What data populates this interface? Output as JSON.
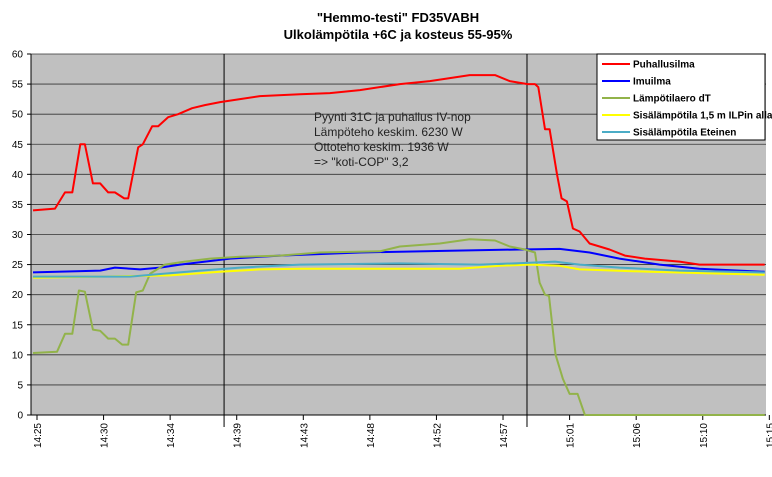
{
  "chart_data": {
    "type": "line",
    "title": "\"Hemmo-testi\" FD35VABH",
    "subtitle": "Ulkolämpötila +6C ja kosteus 55-95%",
    "xlabel": "",
    "ylabel": "",
    "x_unit": "sample index (tick every 10 samples)",
    "xlim": [
      -0.9,
      109.5
    ],
    "ylim": [
      0,
      60
    ],
    "yticks": [
      0,
      5,
      10,
      15,
      20,
      25,
      30,
      35,
      40,
      45,
      50,
      55,
      60
    ],
    "xticks": [
      {
        "x": 0,
        "label": "14:25"
      },
      {
        "x": 10,
        "label": "14:30"
      },
      {
        "x": 20,
        "label": "14:34"
      },
      {
        "x": 30,
        "label": "14:39"
      },
      {
        "x": 40,
        "label": "14:43"
      },
      {
        "x": 50,
        "label": "14:48"
      },
      {
        "x": 60,
        "label": "14:52"
      },
      {
        "x": 70,
        "label": "14:57"
      },
      {
        "x": 80,
        "label": "15:01"
      },
      {
        "x": 90,
        "label": "15:06"
      },
      {
        "x": 100,
        "label": "15:10"
      },
      {
        "x": 110,
        "label": "15:15"
      }
    ],
    "grid": "horizontal",
    "background": "#c0c0c0",
    "legend_position": "top-right",
    "vertical_markers": [
      28.1,
      73.6
    ],
    "annotation": [
      "Pyynti 31C ja puhallus  IV-nop",
      "Lämpöteho keskim. 6230 W",
      "Ottoteho keskim. 1936 W",
      "=> \"koti-COP\" 3,2"
    ],
    "series": [
      {
        "name": "Puhallusilma",
        "color": "#ff0000",
        "points": [
          [
            -0.6,
            34
          ],
          [
            2.7,
            34.3
          ],
          [
            4.2,
            37
          ],
          [
            5.3,
            37
          ],
          [
            6.5,
            45
          ],
          [
            7.2,
            45
          ],
          [
            8.4,
            38.5
          ],
          [
            9.5,
            38.5
          ],
          [
            10.7,
            37
          ],
          [
            11.7,
            37
          ],
          [
            13.1,
            36
          ],
          [
            13.7,
            36
          ],
          [
            15.2,
            44.5
          ],
          [
            15.9,
            45
          ],
          [
            17.3,
            48
          ],
          [
            18.2,
            48
          ],
          [
            19.7,
            49.5
          ],
          [
            21.2,
            50
          ],
          [
            23.3,
            51
          ],
          [
            25.2,
            51.5
          ],
          [
            27.5,
            52
          ],
          [
            30.5,
            52.5
          ],
          [
            33.5,
            53
          ],
          [
            39.5,
            53.3
          ],
          [
            44,
            53.5
          ],
          [
            48.5,
            54
          ],
          [
            54.5,
            55
          ],
          [
            59,
            55.5
          ],
          [
            62,
            56
          ],
          [
            65,
            56.5
          ],
          [
            68.8,
            56.5
          ],
          [
            71,
            55.5
          ],
          [
            73.7,
            55
          ],
          [
            74.8,
            55
          ],
          [
            75.3,
            54.5
          ],
          [
            76.3,
            47.5
          ],
          [
            77,
            47.5
          ],
          [
            78.1,
            40
          ],
          [
            78.8,
            36
          ],
          [
            79.6,
            35.5
          ],
          [
            80.5,
            31
          ],
          [
            81.5,
            30.5
          ],
          [
            83,
            28.5
          ],
          [
            84.5,
            28
          ],
          [
            86,
            27.5
          ],
          [
            88.3,
            26.5
          ],
          [
            91.3,
            26
          ],
          [
            96.5,
            25.5
          ],
          [
            99.5,
            25
          ],
          [
            109.3,
            25
          ]
        ]
      },
      {
        "name": "Imuilma",
        "color": "#0000ff",
        "points": [
          [
            -0.6,
            23.7
          ],
          [
            9.5,
            24
          ],
          [
            11.7,
            24.5
          ],
          [
            15.5,
            24.2
          ],
          [
            18.5,
            24.5
          ],
          [
            21.5,
            25
          ],
          [
            29,
            26
          ],
          [
            36.5,
            26.5
          ],
          [
            48.5,
            27
          ],
          [
            62,
            27.3
          ],
          [
            72.5,
            27.5
          ],
          [
            78.5,
            27.6
          ],
          [
            83,
            27
          ],
          [
            87.5,
            26
          ],
          [
            93.5,
            25
          ],
          [
            99.5,
            24.3
          ],
          [
            109.3,
            23.8
          ]
        ]
      },
      {
        "name": "Lämpötilaero dT",
        "color": "#92b34a",
        "points": [
          [
            -0.6,
            10.3
          ],
          [
            3,
            10.5
          ],
          [
            4.2,
            13.5
          ],
          [
            5.3,
            13.5
          ],
          [
            6.3,
            20.7
          ],
          [
            7.2,
            20.5
          ],
          [
            8.4,
            14.2
          ],
          [
            9.5,
            14
          ],
          [
            10.7,
            12.7
          ],
          [
            11.7,
            12.7
          ],
          [
            12.8,
            11.7
          ],
          [
            13.7,
            11.7
          ],
          [
            14.9,
            20.4
          ],
          [
            15.9,
            20.7
          ],
          [
            17,
            23.5
          ],
          [
            19.2,
            25
          ],
          [
            22.2,
            25.5
          ],
          [
            26,
            26
          ],
          [
            30.5,
            26.3
          ],
          [
            36.5,
            26.5
          ],
          [
            42.5,
            27
          ],
          [
            51.5,
            27.2
          ],
          [
            54.5,
            28
          ],
          [
            60.5,
            28.5
          ],
          [
            65,
            29.2
          ],
          [
            68.8,
            29
          ],
          [
            71,
            28
          ],
          [
            73.3,
            27.5
          ],
          [
            74.8,
            27
          ],
          [
            75.5,
            22
          ],
          [
            76.3,
            20
          ],
          [
            76.9,
            19.8
          ],
          [
            77.9,
            10
          ],
          [
            79,
            6
          ],
          [
            80,
            3.5
          ],
          [
            81.2,
            3.5
          ],
          [
            82.3,
            0
          ],
          [
            109.3,
            0
          ]
        ]
      },
      {
        "name": "Sisälämpötila 1,5 m ILPin alla",
        "color": "#ffff00",
        "points": [
          [
            -0.6,
            22.8
          ],
          [
            9.5,
            23
          ],
          [
            20,
            23.2
          ],
          [
            27.5,
            23.8
          ],
          [
            33.5,
            24.2
          ],
          [
            39.5,
            24.3
          ],
          [
            63.5,
            24.3
          ],
          [
            69.5,
            24.8
          ],
          [
            74,
            25
          ],
          [
            78.5,
            24.8
          ],
          [
            81.5,
            24.2
          ],
          [
            92,
            23.8
          ],
          [
            109.3,
            23.3
          ]
        ]
      },
      {
        "name": "Sisälämpötila Eteinen",
        "color": "#4bacc6",
        "points": [
          [
            -0.6,
            23
          ],
          [
            14,
            23
          ],
          [
            19.2,
            23.5
          ],
          [
            24.5,
            24
          ],
          [
            30.5,
            24.5
          ],
          [
            39.5,
            25
          ],
          [
            54.5,
            25.2
          ],
          [
            66.5,
            25
          ],
          [
            74,
            25.3
          ],
          [
            77.8,
            25.5
          ],
          [
            81.5,
            25
          ],
          [
            87.5,
            24.5
          ],
          [
            96.5,
            24
          ],
          [
            109.3,
            23.7
          ]
        ]
      }
    ]
  }
}
